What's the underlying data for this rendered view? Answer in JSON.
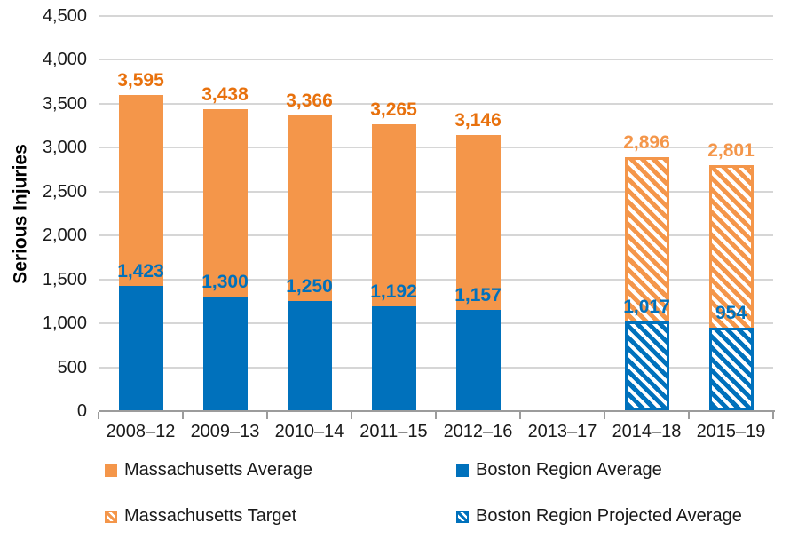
{
  "chart_data": {
    "type": "bar",
    "title": "",
    "ylabel": "Serious Injuries",
    "xlabel": "",
    "ylim": [
      0,
      4500
    ],
    "ytick_step": 500,
    "yticks": [
      0,
      500,
      1000,
      1500,
      2000,
      2500,
      3000,
      3500,
      4000,
      4500
    ],
    "ytick_labels": [
      "0",
      "500",
      "1,000",
      "1,500",
      "2,000",
      "2,500",
      "3,000",
      "3,500",
      "4,000",
      "4,500"
    ],
    "grid": true,
    "legend_position": "bottom",
    "categories": [
      "2008–12",
      "2009–13",
      "2010–14",
      "2011–15",
      "2012–16",
      "2013–17",
      "2014–18",
      "2015–19"
    ],
    "series": [
      {
        "name": "Massachusetts Average",
        "style": "solid",
        "layer": "back",
        "color": "#F4964A",
        "label_color": "#E8710D",
        "values": [
          3595,
          3438,
          3366,
          3265,
          3146,
          null,
          null,
          null
        ],
        "labels": [
          "3,595",
          "3,438",
          "3,366",
          "3,265",
          "3,146",
          null,
          null,
          null
        ]
      },
      {
        "name": "Boston Region Average",
        "style": "solid",
        "layer": "front",
        "color": "#0071BC",
        "label_color": "#0071BC",
        "values": [
          1423,
          1300,
          1250,
          1192,
          1157,
          null,
          null,
          null
        ],
        "labels": [
          "1,423",
          "1,300",
          "1,250",
          "1,192",
          "1,157",
          null,
          null,
          null
        ]
      },
      {
        "name": "Massachusetts Target",
        "style": "hatched",
        "layer": "back",
        "color": "#F4964A",
        "label_color": "#F4964A",
        "values": [
          null,
          null,
          null,
          null,
          null,
          null,
          2896,
          2801
        ],
        "labels": [
          null,
          null,
          null,
          null,
          null,
          null,
          "2,896",
          "2,801"
        ]
      },
      {
        "name": "Boston Region Projected Average",
        "style": "hatched",
        "layer": "front",
        "color": "#0071BC",
        "label_color": "#0071BC",
        "values": [
          null,
          null,
          null,
          null,
          null,
          null,
          1017,
          954
        ],
        "labels": [
          null,
          null,
          null,
          null,
          null,
          null,
          "1,017",
          "954"
        ]
      }
    ],
    "colors": {
      "gridline": "#D6D6D6",
      "axis": "#9C9C9C",
      "text": "#1a1a1a"
    }
  }
}
